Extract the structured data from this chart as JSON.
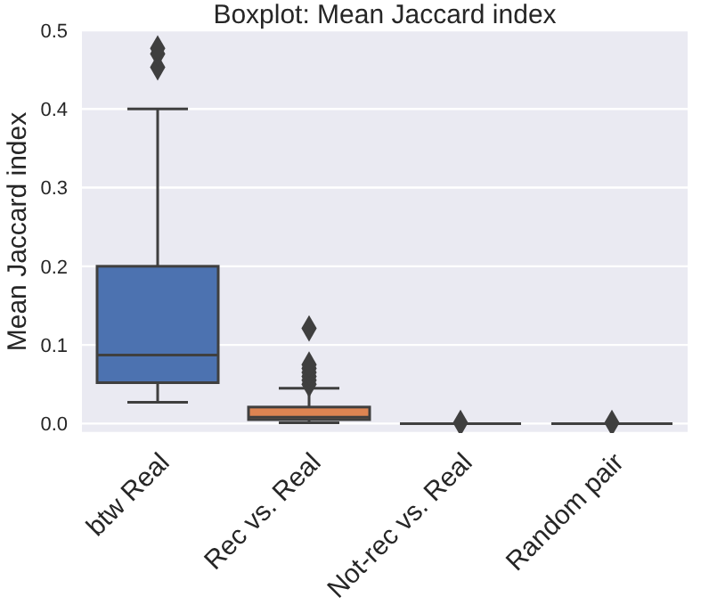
{
  "chart_data": {
    "type": "box",
    "title": "Boxplot: Mean Jaccard index",
    "ylabel": "Mean Jaccard index",
    "categories": [
      "btw Real",
      "Rec vs. Real",
      "Not-rec vs. Real",
      "Random pair"
    ],
    "colors": [
      "#4c72b0",
      "#dd8452",
      null,
      null
    ],
    "boxes": [
      {
        "low": 0.027,
        "q1": 0.052,
        "median": 0.087,
        "q3": 0.2,
        "high": 0.4,
        "outliers": [
          0.453,
          0.47,
          0.477
        ]
      },
      {
        "low": 0.001,
        "q1": 0.005,
        "median": 0.008,
        "q3": 0.021,
        "high": 0.045,
        "outliers": [
          0.05,
          0.055,
          0.06,
          0.065,
          0.07,
          0.075,
          0.121
        ]
      },
      {
        "low": 0,
        "q1": 0,
        "median": 0,
        "q3": 0,
        "high": 0,
        "outliers": [
          0.001
        ]
      },
      {
        "low": 0,
        "q1": 0,
        "median": 0,
        "q3": 0,
        "high": 0,
        "outliers": [
          0.001
        ]
      }
    ],
    "ylim": [
      -0.012,
      0.5
    ],
    "yticks": [
      {
        "value": 0,
        "label": "0.0"
      },
      {
        "value": 0.1,
        "label": "0.1"
      },
      {
        "value": 0.2,
        "label": "0.2"
      },
      {
        "value": 0.3,
        "label": "0.3"
      },
      {
        "value": 0.4,
        "label": "0.4"
      },
      {
        "value": 0.5,
        "label": "0.5"
      }
    ],
    "grid": "y",
    "marker": "diamond"
  }
}
